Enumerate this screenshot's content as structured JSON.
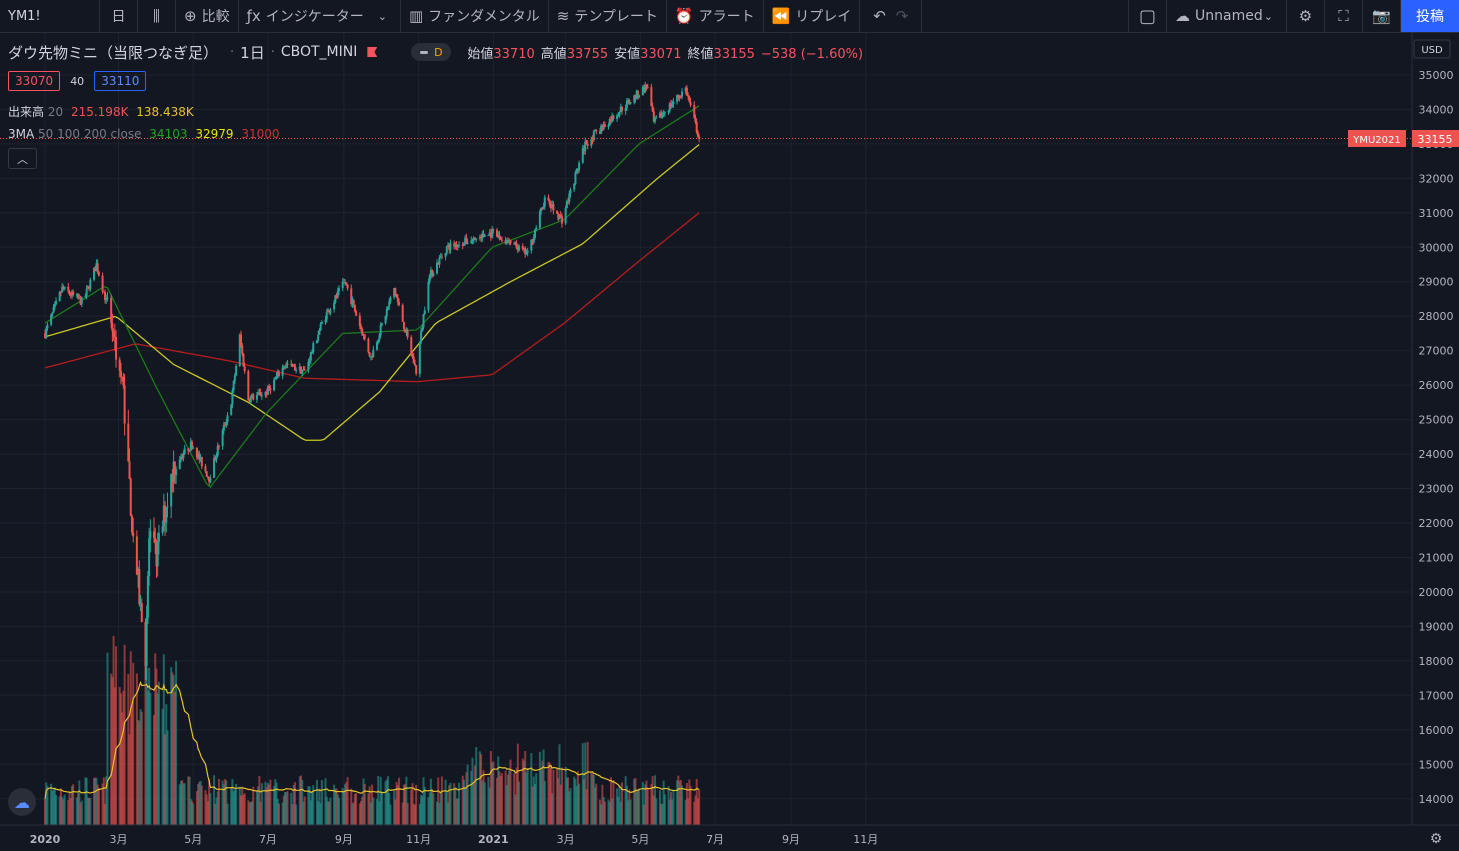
{
  "toolbar": {
    "symbol": "YM1!",
    "interval": "日",
    "compare": "比較",
    "indicators": "インジケーター",
    "fundamentals": "ファンダメンタル",
    "templates": "テンプレート",
    "alert": "アラート",
    "replay": "リプレイ",
    "layout_name": "Unnamed",
    "post": "投稿"
  },
  "legend": {
    "title": "ダウ先物ミニ（当限つなぎ足）",
    "interval": "1日",
    "exchange": "CBOT_MINI",
    "mode": "D",
    "open_label": "始値",
    "open": "33710",
    "high_label": "高値",
    "high": "33755",
    "low_label": "安値",
    "low": "33071",
    "close_label": "終値",
    "close": "33155",
    "change": "−538 (−1.60%)"
  },
  "bidask": {
    "bid": "33070",
    "spread": "40",
    "ask": "33110"
  },
  "volume_indicator": {
    "label": "出来高",
    "param": "20",
    "v1": "215.198K",
    "v2": "138.438K"
  },
  "ma_indicator": {
    "label": "3MA",
    "params": "50 100 200 close",
    "ma50": "34103",
    "ma100": "32979",
    "ma200": "31000"
  },
  "price_scale": {
    "currency": "USD",
    "last_price": "33155",
    "contract": "YMU2021"
  },
  "colors": {
    "up": "#26a69a",
    "down": "#ef5350",
    "ma50": "#1b7a1b",
    "ma100": "#c8c81e",
    "ma200": "#b71c1c",
    "vol_ma": "#e6c229",
    "accent": "#2962ff"
  },
  "chart_data": {
    "type": "candlestick",
    "y_ticks": [
      14000,
      15000,
      16000,
      17000,
      18000,
      19000,
      20000,
      21000,
      22000,
      23000,
      24000,
      25000,
      26000,
      27000,
      28000,
      29000,
      30000,
      31000,
      32000,
      33000,
      34000,
      35000
    ],
    "x_ticks": [
      "2020",
      "3月",
      "5月",
      "7月",
      "9月",
      "11月",
      "2021",
      "3月",
      "5月",
      "7月",
      "9月",
      "11月"
    ],
    "price_path": [
      [
        "2020-01-01",
        27500
      ],
      [
        "2020-01-15",
        28800
      ],
      [
        "2020-02-01",
        28400
      ],
      [
        "2020-02-12",
        29500
      ],
      [
        "2020-02-24",
        27900
      ],
      [
        "2020-03-05",
        25800
      ],
      [
        "2020-03-12",
        22000
      ],
      [
        "2020-03-20",
        19200
      ],
      [
        "2020-03-23",
        18200
      ],
      [
        "2020-03-26",
        21500
      ],
      [
        "2020-04-01",
        21000
      ],
      [
        "2020-04-15",
        23700
      ],
      [
        "2020-04-30",
        24300
      ],
      [
        "2020-05-14",
        23300
      ],
      [
        "2020-06-01",
        25500
      ],
      [
        "2020-06-08",
        27400
      ],
      [
        "2020-06-15",
        25600
      ],
      [
        "2020-06-30",
        25800
      ],
      [
        "2020-07-15",
        26600
      ],
      [
        "2020-07-31",
        26400
      ],
      [
        "2020-08-15",
        27900
      ],
      [
        "2020-09-02",
        29000
      ],
      [
        "2020-09-23",
        26800
      ],
      [
        "2020-10-12",
        28800
      ],
      [
        "2020-10-30",
        26400
      ],
      [
        "2020-11-09",
        29100
      ],
      [
        "2020-11-24",
        30000
      ],
      [
        "2020-12-31",
        30400
      ],
      [
        "2021-01-29",
        29800
      ],
      [
        "2021-02-12",
        31400
      ],
      [
        "2021-02-26",
        30800
      ],
      [
        "2021-03-17",
        33000
      ],
      [
        "2021-04-15",
        34000
      ],
      [
        "2021-05-07",
        34700
      ],
      [
        "2021-05-12",
        33600
      ],
      [
        "2021-06-07",
        34600
      ],
      [
        "2021-06-18",
        33155
      ]
    ],
    "ma50_path": [
      [
        "2020-01-01",
        27800
      ],
      [
        "2020-02-20",
        28900
      ],
      [
        "2020-03-31",
        26000
      ],
      [
        "2020-05-14",
        23000
      ],
      [
        "2020-06-30",
        25200
      ],
      [
        "2020-08-31",
        27500
      ],
      [
        "2020-10-31",
        27600
      ],
      [
        "2020-12-31",
        30000
      ],
      [
        "2021-02-28",
        30800
      ],
      [
        "2021-04-30",
        33000
      ],
      [
        "2021-06-18",
        34103
      ]
    ],
    "ma100_path": [
      [
        "2020-01-01",
        27400
      ],
      [
        "2020-02-28",
        28000
      ],
      [
        "2020-04-15",
        26600
      ],
      [
        "2020-06-15",
        25500
      ],
      [
        "2020-07-31",
        24400
      ],
      [
        "2020-08-15",
        24400
      ],
      [
        "2020-09-30",
        25800
      ],
      [
        "2020-11-15",
        27800
      ],
      [
        "2021-01-15",
        29000
      ],
      [
        "2021-03-15",
        30100
      ],
      [
        "2021-05-15",
        32000
      ],
      [
        "2021-06-18",
        32979
      ]
    ],
    "ma200_path": [
      [
        "2020-01-01",
        26500
      ],
      [
        "2020-03-15",
        27200
      ],
      [
        "2020-05-31",
        26700
      ],
      [
        "2020-07-31",
        26200
      ],
      [
        "2020-10-31",
        26100
      ],
      [
        "2020-12-31",
        26300
      ],
      [
        "2021-02-28",
        27800
      ],
      [
        "2021-04-30",
        29600
      ],
      [
        "2021-06-18",
        31000
      ]
    ],
    "last_price": 33155
  }
}
